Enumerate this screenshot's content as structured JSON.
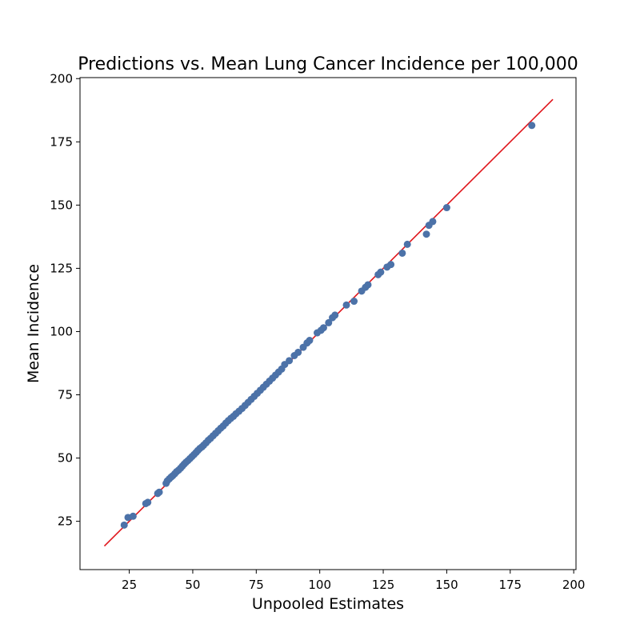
{
  "chart_data": {
    "type": "scatter",
    "title": "Predictions vs. Mean Lung Cancer Incidence per 100,000",
    "xlabel": "Unpooled Estimates",
    "ylabel": "Mean Incidence",
    "xlim": [
      5.6,
      200.9
    ],
    "ylim": [
      5.9,
      200.4
    ],
    "xticks": [
      25,
      50,
      75,
      100,
      125,
      150,
      175,
      200
    ],
    "yticks": [
      25,
      50,
      75,
      100,
      125,
      150,
      175,
      200
    ],
    "grid": false,
    "colors": {
      "points": "#4c72a8",
      "line": "#e0151b",
      "axes": "#000000"
    },
    "reference_line": {
      "x": [
        15.2,
        191.8
      ],
      "y": [
        15.2,
        191.8
      ]
    },
    "points": {
      "x": [
        23.0,
        24.5,
        26.5,
        31.5,
        32.3,
        36.2,
        36.8,
        39.5,
        40.0,
        40.8,
        41.5,
        42.1,
        42.9,
        43.6,
        44.4,
        45.2,
        45.9,
        46.6,
        47.3,
        48.1,
        48.9,
        49.7,
        50.5,
        51.3,
        52.0,
        52.8,
        53.6,
        54.3,
        55.2,
        56.1,
        57.0,
        58.0,
        59.0,
        60.0,
        61.0,
        62.0,
        63.0,
        64.0,
        65.0,
        66.0,
        67.0,
        68.2,
        69.4,
        70.6,
        71.8,
        73.0,
        74.2,
        75.4,
        76.6,
        77.8,
        79.0,
        80.2,
        81.4,
        82.6,
        83.8,
        85.0,
        86.2,
        88.0,
        90.0,
        91.5,
        93.5,
        95.0,
        96.0,
        99.0,
        100.5,
        101.5,
        103.5,
        105.0,
        106.0,
        110.5,
        113.5,
        116.5,
        118.0,
        119.0,
        123.0,
        124.0,
        126.5,
        128.0,
        132.5,
        134.5,
        142.0,
        143.0,
        144.5,
        150.0,
        183.5
      ],
      "y": [
        23.5,
        26.5,
        27.0,
        32.0,
        32.5,
        36.0,
        36.5,
        40.0,
        41.0,
        41.8,
        42.5,
        43.0,
        43.8,
        44.6,
        45.2,
        46.0,
        46.8,
        47.6,
        48.3,
        49.0,
        49.8,
        50.6,
        51.4,
        52.2,
        53.0,
        53.8,
        54.4,
        55.1,
        56.0,
        57.0,
        57.8,
        58.8,
        59.8,
        60.8,
        61.8,
        62.7,
        63.8,
        64.8,
        65.7,
        66.5,
        67.5,
        68.5,
        69.6,
        70.8,
        72.0,
        73.2,
        74.4,
        75.6,
        76.8,
        78.0,
        79.2,
        80.4,
        81.6,
        82.8,
        84.0,
        85.2,
        87.0,
        88.5,
        90.5,
        91.8,
        93.8,
        95.5,
        96.5,
        99.5,
        100.5,
        101.5,
        103.5,
        105.5,
        106.5,
        110.5,
        112.0,
        116.0,
        117.5,
        118.5,
        122.5,
        123.5,
        125.5,
        126.5,
        131.0,
        134.5,
        138.5,
        142.0,
        143.5,
        149.0,
        181.5
      ]
    }
  }
}
